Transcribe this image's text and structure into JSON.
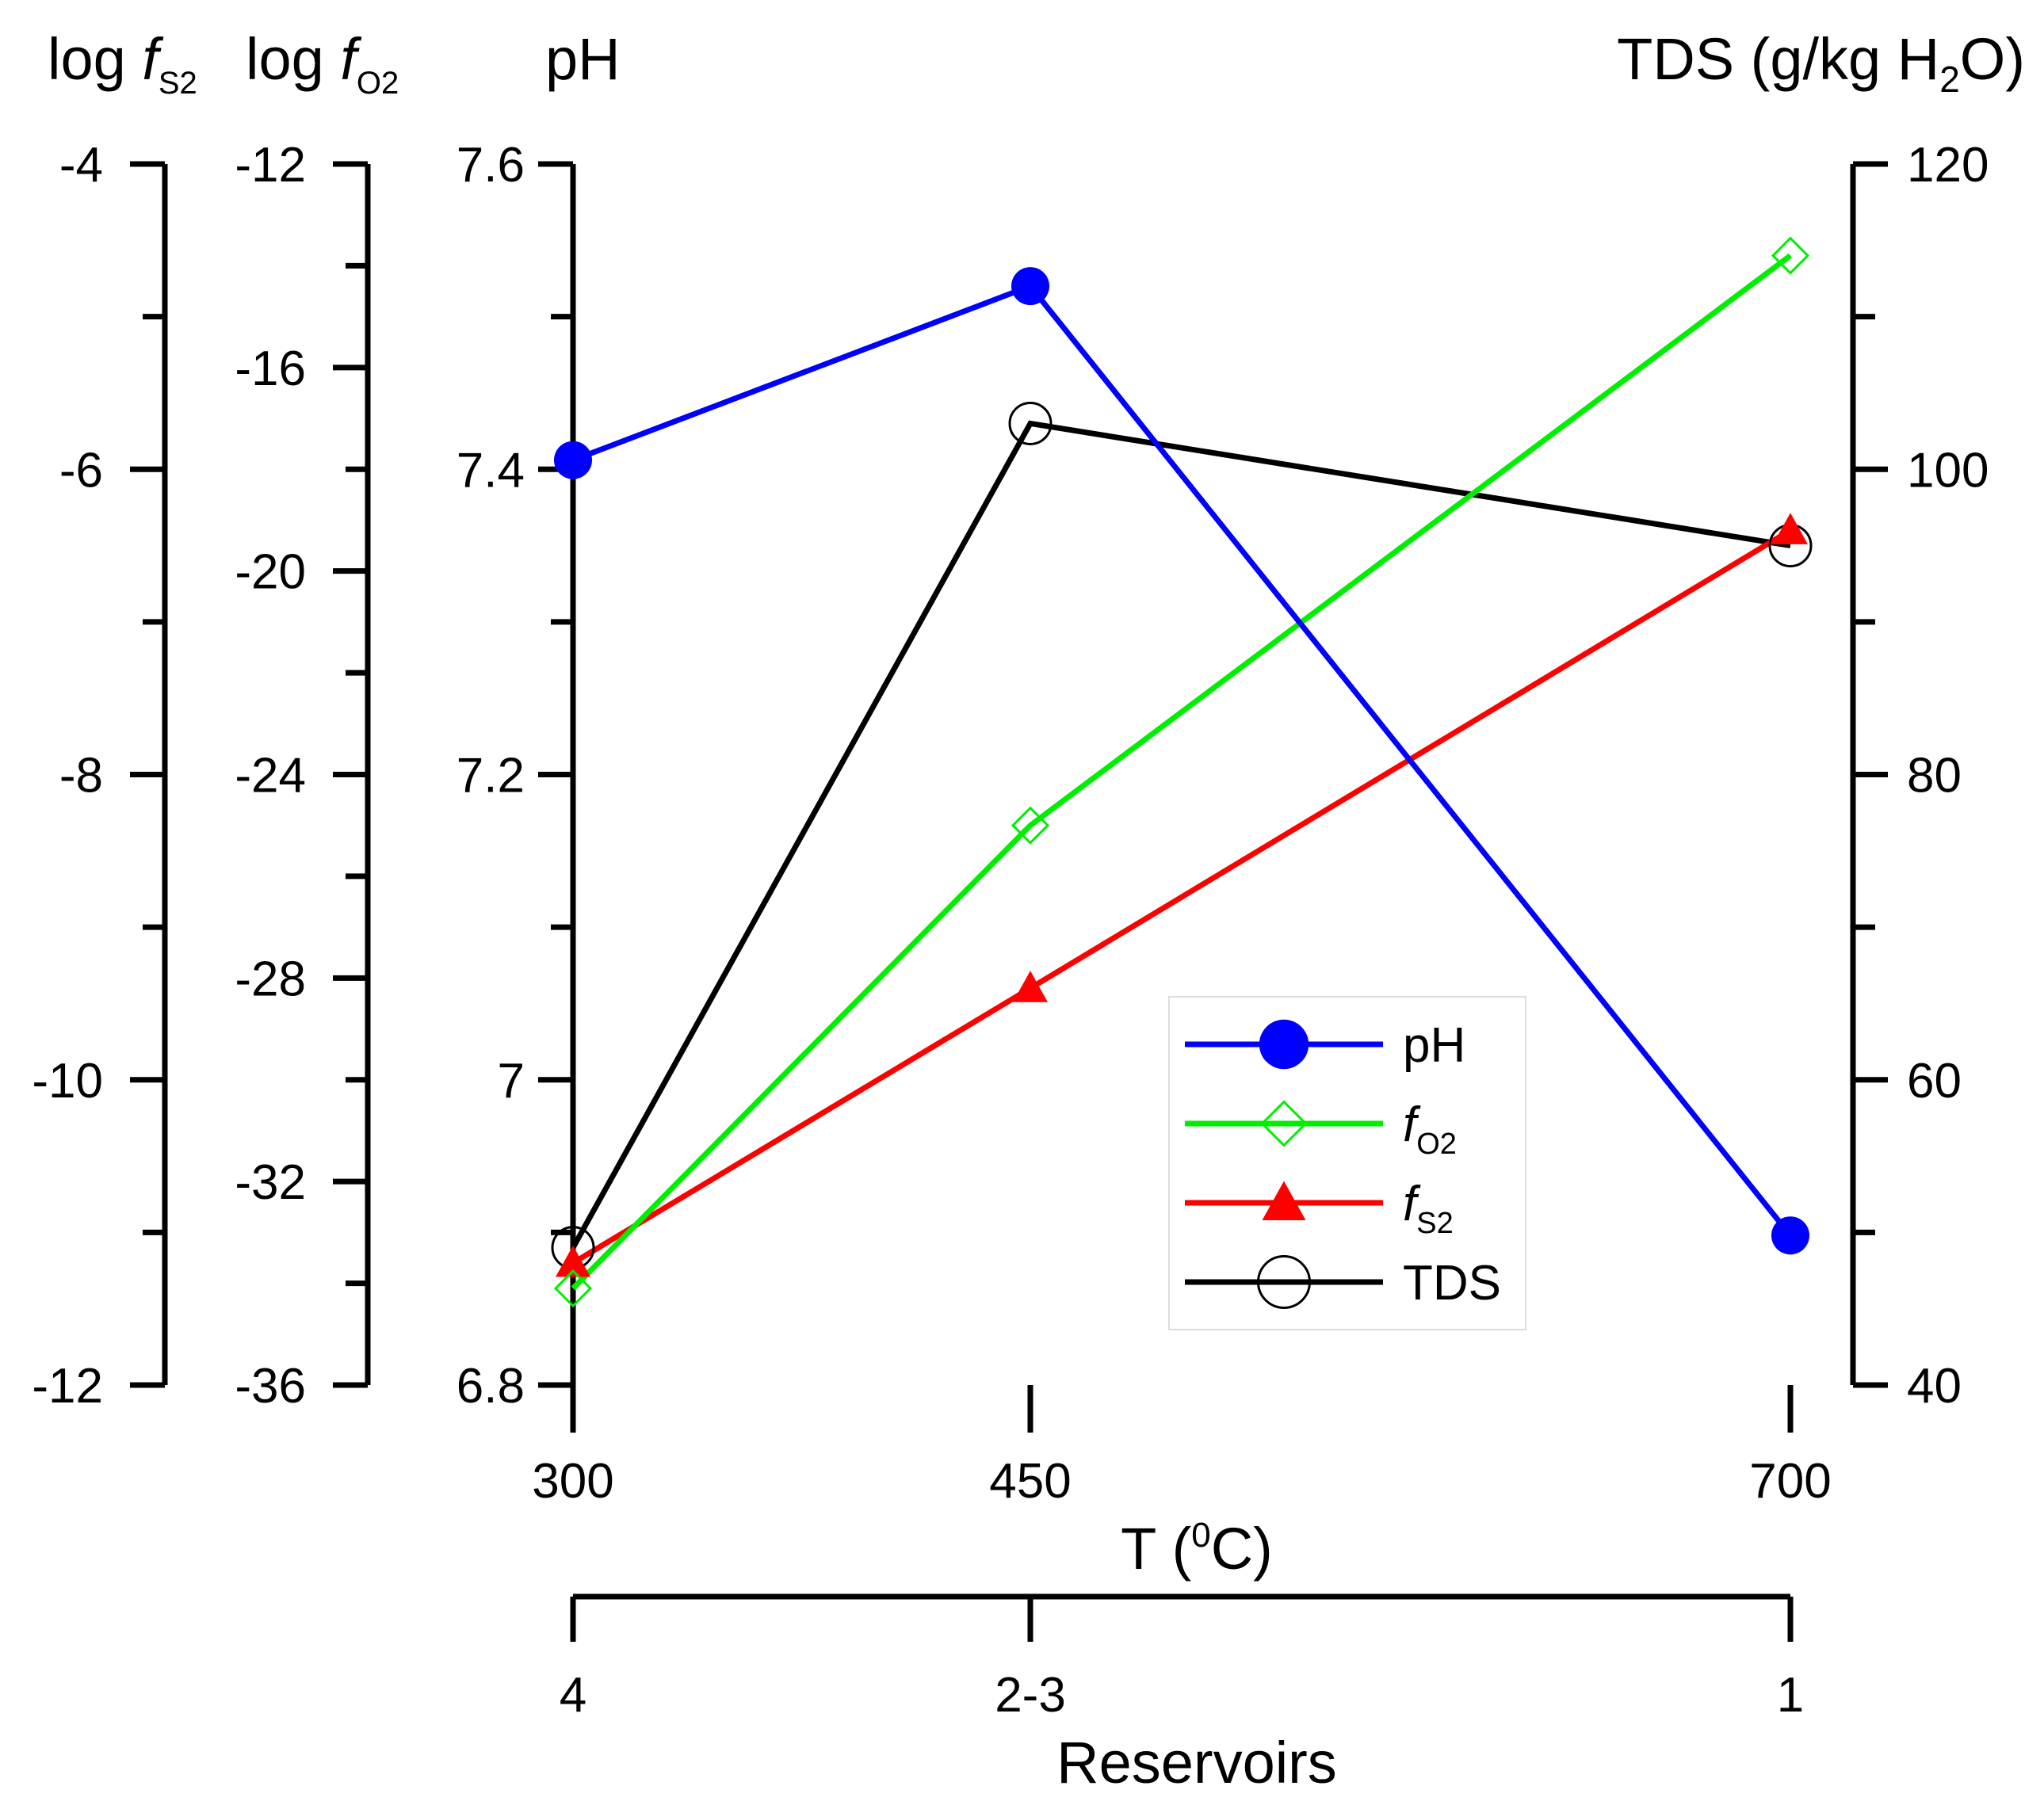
{
  "chart_data": {
    "type": "line",
    "x": [
      300,
      450,
      700
    ],
    "x_categories": [
      "300",
      "450",
      "700"
    ],
    "xlabel": "T (⁰C)",
    "xlabel_parts": {
      "pre": "T (",
      "sup": "0",
      "post": "C)"
    },
    "secondary_x": {
      "label": "Reservoirs",
      "tick_labels": [
        "4",
        "2-3",
        "1"
      ]
    },
    "axes": {
      "log_fs2": {
        "title_pre": "log ",
        "title_var": "f",
        "title_sub": "S2",
        "range": [
          -12,
          -4
        ],
        "ticks": [
          "-12",
          "-10",
          "-8",
          "-6",
          "-4"
        ]
      },
      "log_fo2": {
        "title_pre": "log ",
        "title_var": "f",
        "title_sub": "O2",
        "range": [
          -36,
          -12
        ],
        "ticks": [
          "-36",
          "-32",
          "-28",
          "-24",
          "-20",
          "-16",
          "-12"
        ]
      },
      "ph": {
        "title": "pH",
        "range": [
          6.8,
          7.6
        ],
        "ticks": [
          "6.8",
          "7",
          "7.2",
          "7.4",
          "7.6"
        ]
      },
      "tds": {
        "title_pre": "TDS (g/kg H",
        "title_sub": "2",
        "title_post": "O)",
        "range": [
          40,
          120
        ],
        "ticks": [
          "40",
          "60",
          "80",
          "100",
          "120"
        ]
      }
    },
    "series": [
      {
        "name": "pH",
        "axis": "ph",
        "color": "#0000ff",
        "marker": "filled-circle",
        "values": [
          7.406,
          7.52,
          6.898
        ]
      },
      {
        "name": "fO2",
        "label_var": "f",
        "label_sub": "O2",
        "axis": "log_fo2",
        "color": "#00ee00",
        "marker": "open-diamond",
        "values": [
          -34.1,
          -25.0,
          -13.8
        ]
      },
      {
        "name": "fS2",
        "label_var": "f",
        "label_sub": "S2",
        "axis": "log_fs2",
        "color": "#ff0000",
        "marker": "filled-triangle",
        "values": [
          -11.2,
          -9.4,
          -6.4
        ]
      },
      {
        "name": "TDS",
        "axis": "tds",
        "color": "#000000",
        "marker": "open-circle",
        "values": [
          49,
          103,
          95
        ]
      }
    ],
    "legend": {
      "position": "lower-right",
      "entries": [
        "pH",
        "fO2",
        "fS2",
        "TDS"
      ]
    }
  }
}
